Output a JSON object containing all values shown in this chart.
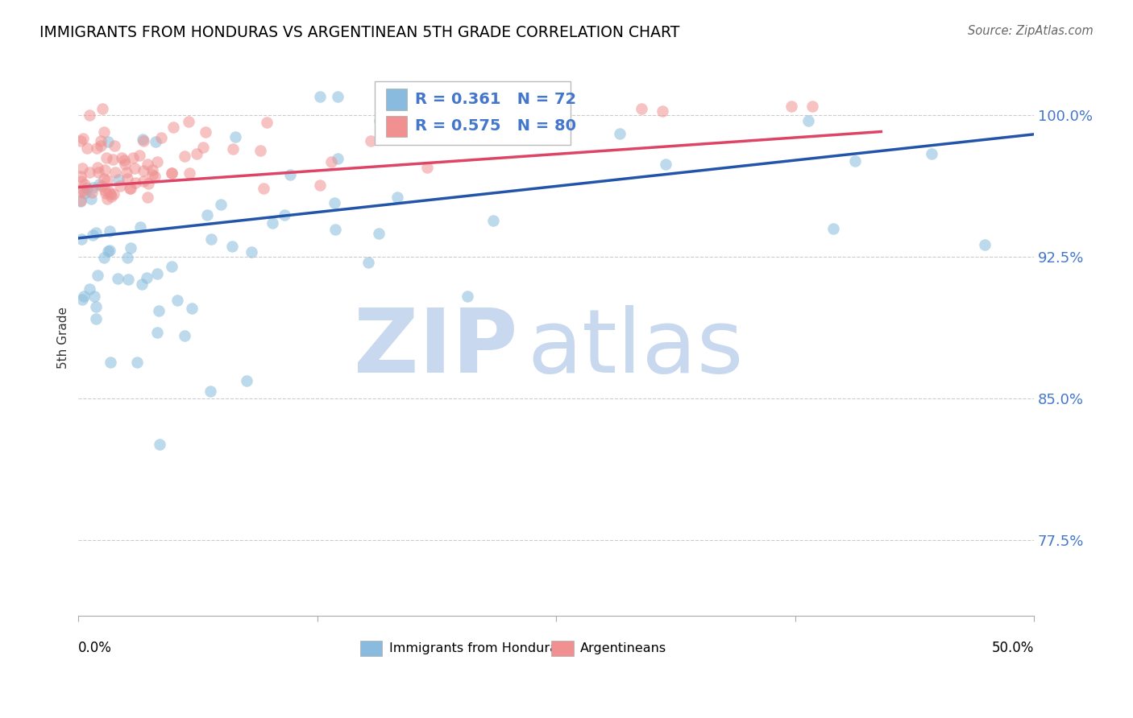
{
  "title": "IMMIGRANTS FROM HONDURAS VS ARGENTINEAN 5TH GRADE CORRELATION CHART",
  "source": "Source: ZipAtlas.com",
  "ylabel": "5th Grade",
  "ytick_labels": [
    "77.5%",
    "85.0%",
    "92.5%",
    "100.0%"
  ],
  "ytick_values": [
    0.775,
    0.85,
    0.925,
    1.0
  ],
  "xlim": [
    0.0,
    0.5
  ],
  "ylim": [
    0.735,
    1.03
  ],
  "legend_blue_label": "Immigrants from Honduras",
  "legend_pink_label": "Argentineans",
  "legend_r_blue": "R = 0.361",
  "legend_n_blue": "N = 72",
  "legend_r_pink": "R = 0.575",
  "legend_n_pink": "N = 80",
  "blue_color": "#88bbdd",
  "pink_color": "#f09090",
  "trendline_blue_color": "#2255aa",
  "trendline_pink_color": "#dd4466",
  "watermark_zip": "ZIP",
  "watermark_atlas": "atlas",
  "watermark_color": "#c8d8ee",
  "tick_label_color": "#4477cc",
  "grid_color": "#cccccc"
}
